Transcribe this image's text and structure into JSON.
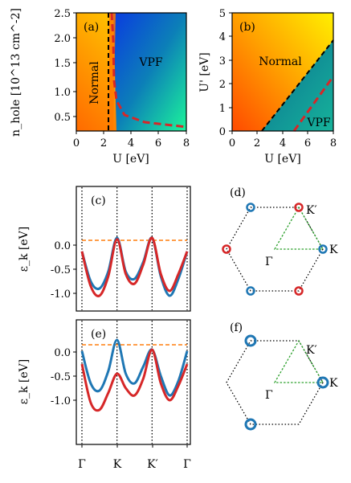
{
  "panels": {
    "a": {
      "label": "(a)"
    },
    "b": {
      "label": "(b)"
    },
    "c": {
      "label": "(c)"
    },
    "d": {
      "label": "(d)"
    },
    "e": {
      "label": "(e)"
    },
    "f": {
      "label": "(f)"
    }
  },
  "colors": {
    "dashed_black": "#000000",
    "dashed_red": "#d62728",
    "band_blue": "#1f77b4",
    "band_red": "#d62728",
    "fermi_orange": "#ff7f0e",
    "triangle_green": "#2ca02c"
  },
  "chart_data": [
    {
      "type": "heatmap",
      "panel": "(a)",
      "xlabel": "U [eV]",
      "ylabel": "n_hole [10^13 cm^-2]",
      "xlim": [
        0,
        8
      ],
      "ylim": [
        0.1,
        2.5
      ],
      "x_ticks": [
        "0",
        "2",
        "4",
        "6",
        "8"
      ],
      "y_ticks": [
        "0.5",
        "1.0",
        "1.5",
        "2.0",
        "2.5"
      ],
      "region_labels": [
        "Normal",
        "VPF"
      ],
      "dashed_black_boundary": [
        [
          2.35,
          0.1
        ],
        [
          2.35,
          2.5
        ]
      ],
      "dashed_red_boundary": [
        [
          2.6,
          2.5
        ],
        [
          2.75,
          2.0
        ],
        [
          2.85,
          1.0
        ],
        [
          3.0,
          0.65
        ],
        [
          3.6,
          0.35
        ],
        [
          5.0,
          0.22
        ],
        [
          8.0,
          0.15
        ]
      ]
    },
    {
      "type": "heatmap",
      "panel": "(b)",
      "xlabel": "U [eV]",
      "ylabel": "U' [eV]",
      "xlim": [
        0,
        8
      ],
      "ylim": [
        0,
        5
      ],
      "x_ticks": [
        "0",
        "2",
        "4",
        "6",
        "8"
      ],
      "y_ticks": [
        "0",
        "1",
        "2",
        "3",
        "4",
        "5"
      ],
      "region_labels": [
        "Normal",
        "VPF"
      ],
      "dashed_black_boundary": [
        [
          2.35,
          0
        ],
        [
          8.0,
          3.85
        ]
      ],
      "dashed_red_boundary": [
        [
          5.0,
          0
        ],
        [
          8.0,
          2.35
        ]
      ]
    },
    {
      "type": "line",
      "panel": "(c)",
      "ylabel": "ε_k [eV]",
      "ylim": [
        -1.18,
        0.4
      ],
      "y_ticks": [
        "0.0",
        "-0.5",
        "-1.0"
      ],
      "fermi_level": 0.1,
      "series": [
        {
          "color": "blue",
          "x": [
            0,
            0.25,
            0.5,
            0.75,
            1,
            1.25,
            1.5,
            1.75,
            2,
            2.25,
            2.5,
            2.75,
            3
          ],
          "values": [
            -0.13,
            -0.75,
            -0.9,
            -0.55,
            0.15,
            -0.55,
            -0.7,
            -0.35,
            0.15,
            -0.65,
            -1.05,
            -0.7,
            -0.13
          ]
        },
        {
          "color": "red",
          "x": [
            0,
            0.25,
            0.5,
            0.75,
            1,
            1.25,
            1.5,
            1.75,
            2,
            2.25,
            2.5,
            2.75,
            3
          ],
          "values": [
            -0.13,
            -0.85,
            -1.05,
            -0.65,
            0.12,
            -0.6,
            -0.8,
            -0.4,
            0.15,
            -0.6,
            -0.95,
            -0.6,
            -0.13
          ]
        }
      ]
    },
    {
      "type": "line",
      "panel": "(e)",
      "ylabel": "ε_k [eV]",
      "ylim": [
        -1.28,
        0.38
      ],
      "y_ticks": [
        "0.0",
        "-0.5",
        "-1.0"
      ],
      "x_ticks": [
        "Γ",
        "K",
        "K′",
        "Γ"
      ],
      "fermi_level": 0.15,
      "series": [
        {
          "color": "blue",
          "x": [
            0,
            0.25,
            0.5,
            0.75,
            1,
            1.25,
            1.5,
            1.75,
            2,
            2.25,
            2.5,
            2.75,
            3
          ],
          "values": [
            0.02,
            -0.65,
            -0.8,
            -0.4,
            0.25,
            -0.45,
            -0.65,
            -0.3,
            0.05,
            -0.5,
            -0.9,
            -0.6,
            0.02
          ]
        },
        {
          "color": "red",
          "x": [
            0,
            0.25,
            0.5,
            0.75,
            1,
            1.25,
            1.5,
            1.75,
            2,
            2.25,
            2.5,
            2.75,
            3
          ],
          "values": [
            -0.25,
            -1.05,
            -1.2,
            -0.85,
            -0.45,
            -0.75,
            -0.9,
            -0.55,
            0.05,
            -0.65,
            -1.0,
            -0.7,
            -0.25
          ]
        }
      ]
    }
  ],
  "bz_labels": {
    "K": "K",
    "Kp": "K′",
    "Gamma": "Γ"
  }
}
